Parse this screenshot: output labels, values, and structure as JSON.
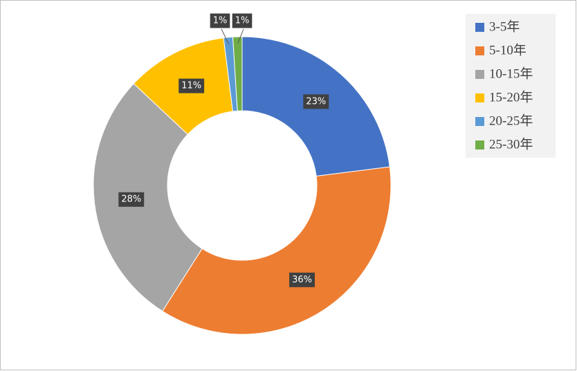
{
  "chart_data": {
    "type": "donut",
    "categories": [
      "3-5年",
      "5-10年",
      "10-15年",
      "15-20年",
      "20-25年",
      "25-30年"
    ],
    "values": [
      23,
      36,
      28,
      11,
      1,
      1
    ],
    "value_labels": [
      "23%",
      "36%",
      "28%",
      "11%",
      "1%",
      "1%"
    ],
    "colors": [
      "#4472c4",
      "#ed7d31",
      "#a5a5a5",
      "#ffc000",
      "#5b9bd5",
      "#70ad47"
    ],
    "legend": "top-right"
  }
}
